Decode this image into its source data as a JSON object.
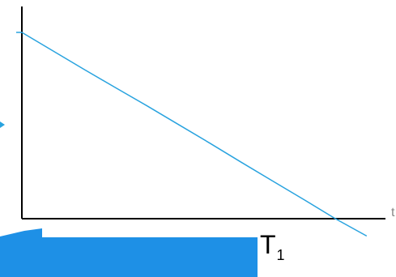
{
  "chart_data": {
    "type": "line",
    "x_axis_label": "t",
    "marker_label": "T",
    "marker_subscript": "1",
    "series": [
      {
        "x": [
          0,
          10,
          20,
          30,
          40,
          50,
          60,
          70,
          80,
          90,
          100,
          110
        ],
        "y": [
          100,
          90,
          80,
          70.2,
          60.5,
          50.5,
          40.5,
          30.3,
          20.2,
          10.2,
          0,
          -9.3
        ]
      }
    ],
    "xlim": [
      0,
      116
    ],
    "ylim": [
      -10,
      100
    ],
    "grid": false,
    "colors": {
      "line": "#29a3df",
      "axis": "#000000",
      "band": "#1e90e6",
      "left_tick": "#29a3df"
    }
  }
}
